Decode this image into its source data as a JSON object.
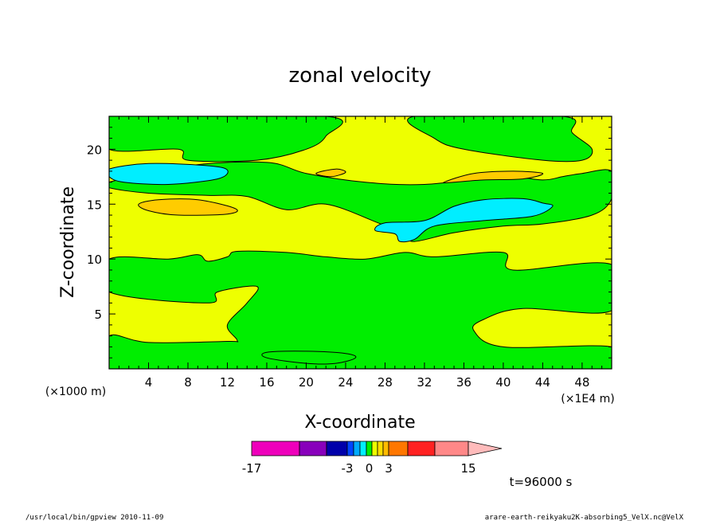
{
  "chart_data": {
    "type": "contour",
    "title": "zonal velocity",
    "xlabel": "X-coordinate",
    "ylabel": "Z-coordinate",
    "x_scale_label": "(×1E4 m)",
    "y_scale_label": "(×1000 m)",
    "xlim": [
      0,
      51
    ],
    "ylim": [
      0,
      23
    ],
    "x_ticks": [
      4,
      8,
      12,
      16,
      20,
      24,
      28,
      32,
      36,
      40,
      44,
      48
    ],
    "y_ticks": [
      5,
      10,
      15,
      20
    ],
    "x_tick_labels": [
      "4",
      "8",
      "12",
      "16",
      "20",
      "24",
      "28",
      "32",
      "36",
      "40",
      "44",
      "48"
    ],
    "y_tick_labels": [
      "5",
      "10",
      "15",
      "20"
    ],
    "colors": {
      "negative_weak": "#00ee00",
      "positive_weak": "#eeff00",
      "negative_mid": "#00eeff",
      "positive_mid": "#ffcc00"
    },
    "regions": [
      {
        "class": "negative_weak",
        "points": [
          [
            0,
            0
          ],
          [
            51,
            0
          ],
          [
            51,
            2
          ],
          [
            40,
            2
          ],
          [
            37,
            3.5
          ],
          [
            38,
            4.5
          ],
          [
            42,
            5.5
          ],
          [
            51,
            5.3
          ],
          [
            51,
            9.5
          ],
          [
            41,
            9
          ],
          [
            40,
            10.6
          ],
          [
            33,
            10.2
          ],
          [
            30,
            10.6
          ],
          [
            26,
            10
          ],
          [
            22,
            10.2
          ],
          [
            18,
            10.6
          ],
          [
            13,
            10.7
          ],
          [
            12,
            10.2
          ],
          [
            10,
            9.8
          ],
          [
            9,
            10.4
          ],
          [
            6,
            10
          ],
          [
            0,
            10
          ],
          [
            0,
            7
          ],
          [
            10,
            6
          ],
          [
            11,
            7
          ],
          [
            15,
            7.5
          ],
          [
            14,
            6
          ],
          [
            12,
            4
          ],
          [
            13,
            2.6
          ],
          [
            12,
            2.5
          ],
          [
            4,
            2.4
          ],
          [
            0,
            3
          ]
        ]
      },
      {
        "class": "negative_weak",
        "points": [
          [
            0,
            20
          ],
          [
            7,
            20
          ],
          [
            8,
            19
          ],
          [
            15,
            19
          ],
          [
            20,
            20
          ],
          [
            22,
            21.2
          ],
          [
            22,
            23
          ],
          [
            0,
            23
          ]
        ]
      },
      {
        "class": "negative_weak",
        "points": [
          [
            31,
            23
          ],
          [
            33,
            21
          ],
          [
            36,
            20
          ],
          [
            44,
            19
          ],
          [
            48,
            19
          ],
          [
            49,
            20
          ],
          [
            47,
            21.5
          ],
          [
            46,
            23
          ]
        ]
      },
      {
        "class": "negative_weak",
        "points": [
          [
            0,
            17
          ],
          [
            8,
            18.5
          ],
          [
            16,
            18.8
          ],
          [
            20,
            17.8
          ],
          [
            26,
            17
          ],
          [
            32,
            16.8
          ],
          [
            40,
            17.5
          ],
          [
            44,
            17.2
          ],
          [
            46,
            17.5
          ],
          [
            48,
            17.8
          ],
          [
            51,
            18
          ],
          [
            51,
            15.5
          ],
          [
            49,
            14
          ],
          [
            44,
            13.2
          ],
          [
            40,
            13
          ],
          [
            35,
            12.4
          ],
          [
            31,
            11.6
          ],
          [
            30,
            12.2
          ],
          [
            27,
            13.4
          ],
          [
            22,
            15
          ],
          [
            18,
            14.5
          ],
          [
            14,
            15.7
          ],
          [
            10,
            15.8
          ],
          [
            4,
            16
          ],
          [
            0,
            16.5
          ]
        ]
      },
      {
        "class": "negative_weak",
        "points": [
          [
            16,
            1.5
          ],
          [
            20,
            1.6
          ],
          [
            24,
            1.4
          ],
          [
            25,
            1
          ],
          [
            23,
            0.5
          ],
          [
            20,
            0.5
          ],
          [
            16,
            1
          ]
        ]
      },
      {
        "class": "negative_mid",
        "points": [
          [
            0,
            18.2
          ],
          [
            4,
            18.7
          ],
          [
            10,
            18.5
          ],
          [
            12,
            18.1
          ],
          [
            11,
            17.3
          ],
          [
            6,
            16.8
          ],
          [
            1.5,
            17
          ],
          [
            0,
            17.5
          ]
        ]
      },
      {
        "class": "negative_mid",
        "points": [
          [
            32,
            13.5
          ],
          [
            35,
            14.8
          ],
          [
            38,
            15.4
          ],
          [
            42,
            15.5
          ],
          [
            44,
            15.1
          ],
          [
            45,
            14.8
          ],
          [
            43,
            13.9
          ],
          [
            38,
            13.5
          ],
          [
            33,
            13
          ],
          [
            31,
            11.8
          ],
          [
            29.5,
            11.6
          ],
          [
            29,
            12.3
          ],
          [
            27,
            12.6
          ],
          [
            28,
            13.3
          ]
        ]
      },
      {
        "class": "positive_mid",
        "points": [
          [
            3,
            15
          ],
          [
            5,
            15.4
          ],
          [
            9,
            15.4
          ],
          [
            12.8,
            14.6
          ],
          [
            12,
            14.1
          ],
          [
            7,
            14
          ],
          [
            4,
            14.4
          ]
        ]
      },
      {
        "class": "positive_mid",
        "points": [
          [
            34,
            17
          ],
          [
            37,
            17.8
          ],
          [
            41,
            18
          ],
          [
            44,
            17.8
          ],
          [
            42,
            17.3
          ],
          [
            38,
            17.2
          ],
          [
            35,
            17
          ]
        ]
      },
      {
        "class": "positive_mid",
        "points": [
          [
            21,
            17.8
          ],
          [
            23,
            18.2
          ],
          [
            24,
            17.9
          ],
          [
            22.5,
            17.5
          ]
        ]
      }
    ],
    "colorbar": {
      "bands": [
        {
          "color": "#ee00bb"
        },
        {
          "color": "#8800bb"
        },
        {
          "color": "#0000aa"
        },
        {
          "color": "#0044ff"
        },
        {
          "color": "#00aaff"
        },
        {
          "color": "#00eeff"
        },
        {
          "color": "#00ee00"
        },
        {
          "color": "#eeff00"
        },
        {
          "color": "#ffdd00"
        },
        {
          "color": "#ffbb00"
        },
        {
          "color": "#ff7700"
        },
        {
          "color": "#ff2222"
        },
        {
          "color": "#ff8888"
        }
      ],
      "overflow_color": "#ffbbbb",
      "tick_labels": [
        "-17",
        "-3",
        "0",
        "3",
        "15"
      ]
    },
    "time_label": "t=96000 s"
  },
  "footer": {
    "left": "/usr/local/bin/gpview   2010-11-09",
    "right": "arare-earth-reikyaku2K-absorbing5_VelX.nc@VelX"
  }
}
